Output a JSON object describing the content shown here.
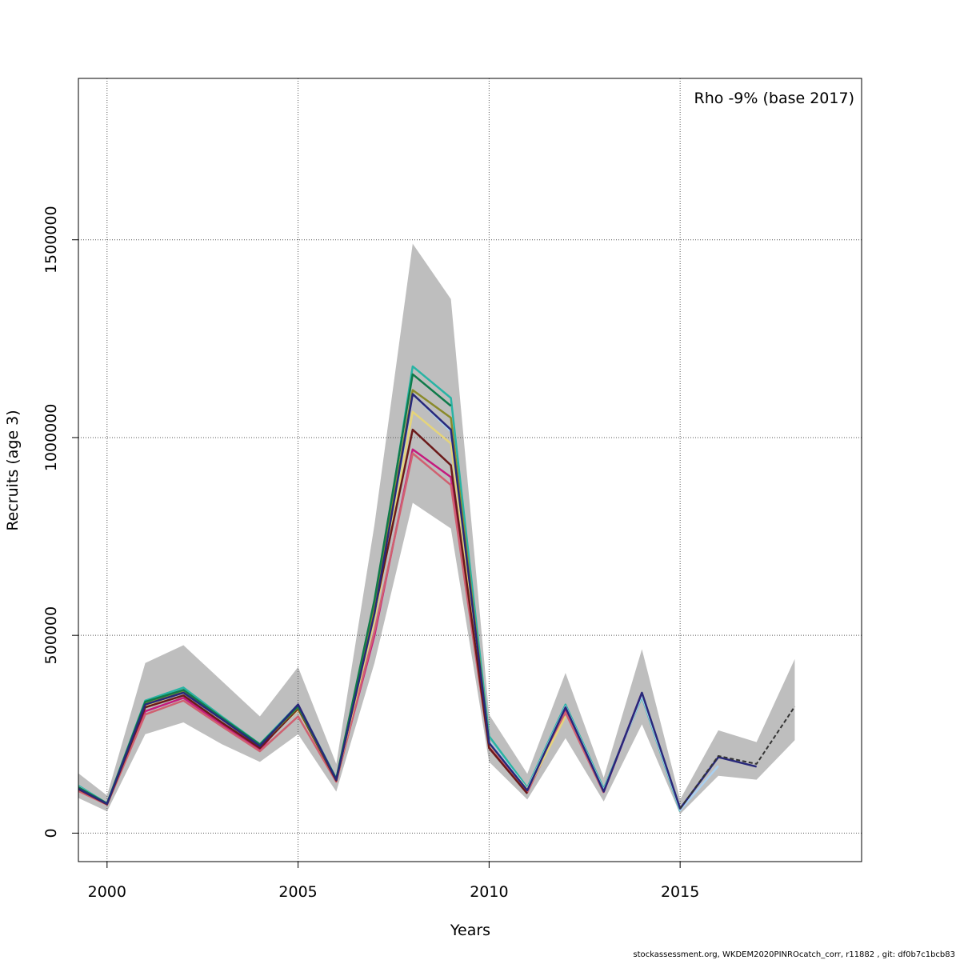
{
  "chart_data": {
    "type": "line",
    "xlabel": "Years",
    "ylabel": "Recruits (age 3)",
    "annotation": "Rho -9% (base 2017)",
    "xlim": [
      1999.25,
      2019.75
    ],
    "ylim": [
      -72000,
      1908000
    ],
    "xticks": [
      2000,
      2005,
      2010,
      2015
    ],
    "yticks": [
      0,
      500000,
      1000000,
      1500000
    ],
    "grid": true,
    "band_color": "#bebebe",
    "band": {
      "x": [
        1999,
        2000,
        2001,
        2002,
        2003,
        2004,
        2005,
        2006,
        2007,
        2008,
        2009,
        2010,
        2011,
        2012,
        2013,
        2014,
        2015,
        2016,
        2017,
        2018
      ],
      "upper": [
        170000,
        95000,
        430000,
        475000,
        385000,
        295000,
        420000,
        175000,
        780000,
        1490000,
        1350000,
        300000,
        150000,
        405000,
        140000,
        465000,
        85000,
        260000,
        230000,
        440000
      ],
      "lower": [
        100000,
        55000,
        250000,
        280000,
        225000,
        180000,
        250000,
        105000,
        430000,
        835000,
        770000,
        180000,
        85000,
        240000,
        80000,
        275000,
        48000,
        145000,
        135000,
        235000
      ]
    },
    "series": [
      {
        "color": "#28b4a4",
        "dashed": false,
        "x": [
          1999,
          2000,
          2001,
          2002,
          2003,
          2004,
          2005,
          2006,
          2007,
          2008,
          2009,
          2010,
          2011,
          2012,
          2013,
          2014,
          2015
        ],
        "values": [
          135000,
          75000,
          335000,
          368000,
          295000,
          225000,
          325000,
          138000,
          560000,
          1180000,
          1100000,
          245000,
          115000,
          325000,
          112000,
          345000,
          55000
        ]
      },
      {
        "color": "#aad0f0",
        "dashed": false,
        "x": [
          1999,
          2000,
          2001,
          2002,
          2003,
          2004,
          2005,
          2006,
          2007,
          2008,
          2009,
          2010,
          2011,
          2012,
          2013,
          2014,
          2015,
          2016
        ],
        "values": [
          132000,
          74000,
          330000,
          362000,
          292000,
          222000,
          320000,
          136000,
          540000,
          1110000,
          1015000,
          232000,
          111000,
          320000,
          108000,
          348000,
          58000,
          170000
        ]
      },
      {
        "color": "#c51b7d",
        "dashed": false,
        "x": [
          1999,
          2000,
          2001,
          2002,
          2003,
          2004,
          2005,
          2006,
          2007,
          2008,
          2009,
          2010,
          2011,
          2012,
          2013,
          2014
        ],
        "values": [
          122000,
          73000,
          308000,
          342000,
          275000,
          210000,
          325000,
          135000,
          500000,
          970000,
          900000,
          220000,
          105000,
          310000,
          104000,
          355000
        ]
      },
      {
        "color": "#d06070",
        "dashed": false,
        "x": [
          1999,
          2000,
          2001,
          2002,
          2003,
          2004,
          2005,
          2006,
          2007,
          2008,
          2009,
          2010,
          2011,
          2012,
          2013
        ],
        "values": [
          118000,
          72000,
          300000,
          335000,
          270000,
          207000,
          295000,
          130000,
          510000,
          960000,
          880000,
          215000,
          103000,
          305000,
          102000
        ]
      },
      {
        "color": "#e5d47a",
        "dashed": false,
        "x": [
          1999,
          2000,
          2001,
          2002,
          2003,
          2004,
          2005,
          2006,
          2007,
          2008,
          2009,
          2010,
          2011,
          2012
        ],
        "values": [
          126000,
          74000,
          320000,
          358000,
          288000,
          220000,
          312000,
          134000,
          540000,
          1065000,
          985000,
          225000,
          110000,
          295000
        ]
      },
      {
        "color": "#6b1a1a",
        "dashed": false,
        "x": [
          1999,
          2000,
          2001,
          2002,
          2003,
          2004,
          2005,
          2006,
          2007,
          2008,
          2009,
          2010,
          2011
        ],
        "values": [
          124000,
          73000,
          318000,
          348000,
          280000,
          215000,
          315000,
          133000,
          560000,
          1020000,
          930000,
          215000,
          100000
        ]
      },
      {
        "color": "#8a8a2a",
        "dashed": false,
        "x": [
          1999,
          2000,
          2001,
          2002,
          2003,
          2004,
          2005,
          2006,
          2007,
          2008,
          2009,
          2010
        ],
        "values": [
          128000,
          74000,
          328000,
          358000,
          290000,
          222000,
          318000,
          136000,
          570000,
          1120000,
          1050000,
          230000
        ]
      },
      {
        "color": "#0f7a4a",
        "dashed": false,
        "x": [
          1999,
          2000,
          2001,
          2002,
          2003,
          2004,
          2005,
          2006,
          2007,
          2008,
          2009
        ],
        "values": [
          130000,
          75000,
          332000,
          362000,
          292000,
          224000,
          320000,
          137000,
          590000,
          1160000,
          1080000
        ]
      },
      {
        "color": "#28287a",
        "dashed": false,
        "x": [
          1999,
          2000,
          2001,
          2002,
          2003,
          2004,
          2005,
          2006,
          2007,
          2008,
          2009,
          2010,
          2011,
          2012,
          2013,
          2014,
          2015,
          2016,
          2017
        ],
        "values": [
          125000,
          74000,
          325000,
          355000,
          288000,
          220000,
          325000,
          135000,
          555000,
          1110000,
          1020000,
          228000,
          108000,
          318000,
          105000,
          355000,
          62000,
          192000,
          168000
        ]
      },
      {
        "color": "#333333",
        "dashed": true,
        "x": [
          2015,
          2016,
          2017,
          2018
        ],
        "values": [
          62000,
          195000,
          175000,
          320000
        ]
      }
    ]
  },
  "footer": "stockassessment.org, WKDEM2020PINROcatch_corr, r11882 , git: df0b7c1bcb83"
}
